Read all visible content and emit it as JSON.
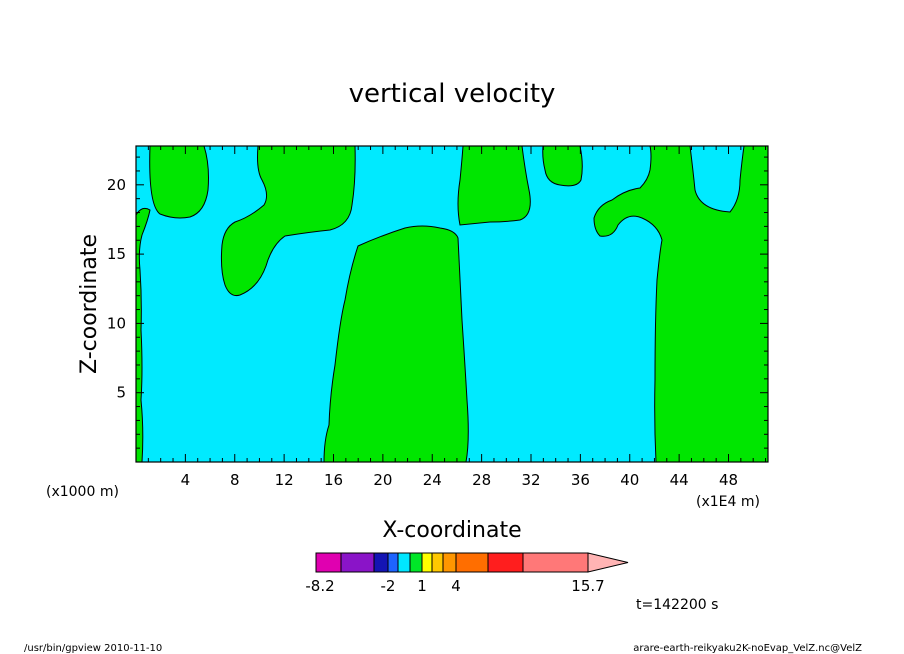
{
  "chart_data": {
    "type": "heatmap",
    "title": "vertical velocity",
    "xlabel": "X-coordinate",
    "ylabel": "Z-coordinate",
    "x_unit_label": "(x1000 m)",
    "x_unit_label_right": "(x1E4 m)",
    "xlim": [
      0,
      51.2
    ],
    "ylim": [
      0,
      22.8
    ],
    "x_ticks": [
      "4",
      "8",
      "12",
      "16",
      "20",
      "24",
      "28",
      "32",
      "36",
      "40",
      "44",
      "48"
    ],
    "y_ticks": [
      "5",
      "10",
      "15",
      "20"
    ],
    "colorbar": {
      "labels": [
        {
          "text": "-8.2",
          "value": -8.2
        },
        {
          "text": "-2",
          "value": -2
        },
        {
          "text": "1",
          "value": 1
        },
        {
          "text": "4",
          "value": 4
        },
        {
          "text": "15.7",
          "value": 15.7
        }
      ],
      "colors": [
        "#e000b0",
        "#8a14c8",
        "#1414b4",
        "#1e64ff",
        "#00e6ff",
        "#00e628",
        "#ffff00",
        "#ffc800",
        "#ff9600",
        "#ff6e00",
        "#ff1e1e",
        "#ff7878",
        "#ffb4b4"
      ]
    },
    "regions": {
      "positive_color": "#00e600",
      "negative_color": "#00eaff",
      "positive_areas": [
        {
          "label": "bottom-left strip",
          "x_range": [
            0,
            0.6
          ],
          "z_range": [
            0,
            17.8
          ]
        },
        {
          "label": "central column",
          "x_range": [
            15.5,
            27
          ],
          "z_range": [
            0,
            17
          ]
        },
        {
          "label": "right column",
          "x_range": [
            42,
            51.2
          ],
          "z_range": [
            0,
            22.8
          ]
        }
      ]
    },
    "time_label": "t=142200 s"
  },
  "footer": {
    "left": "/usr/bin/gpview   2010-11-10",
    "right": "arare-earth-reikyaku2K-noEvap_VelZ.nc@VelZ"
  }
}
